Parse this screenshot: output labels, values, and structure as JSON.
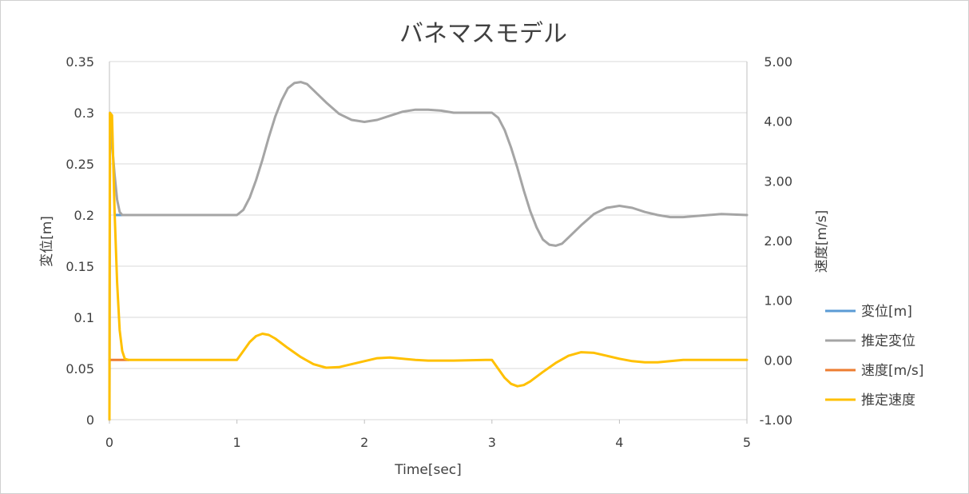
{
  "chart_data": {
    "type": "line",
    "title": "バネマスモデル",
    "xlabel": "Time[sec]",
    "ylabel": "変位[m]",
    "ylabel_right": "速度[m/s]",
    "xlim": [
      0,
      5
    ],
    "ylim": [
      0,
      0.35
    ],
    "ylim_right": [
      -1.0,
      5.0
    ],
    "x_ticks": [
      "0",
      "1",
      "2",
      "3",
      "4",
      "5"
    ],
    "y_ticks": [
      "0",
      "0.05",
      "0.1",
      "0.15",
      "0.2",
      "0.25",
      "0.3",
      "0.35"
    ],
    "y_ticks_right": [
      "-1.00",
      "0.00",
      "1.00",
      "2.00",
      "3.00",
      "4.00",
      "5.00"
    ],
    "grid": "horizontal",
    "legend_position": "right",
    "series": [
      {
        "name": "変位[m]",
        "axis": "left",
        "color": "#5b9bd5",
        "points": [
          [
            0.05,
            0.2
          ],
          [
            0.15,
            0.2
          ]
        ]
      },
      {
        "name": "推定変位",
        "axis": "left",
        "color": "#a5a5a5",
        "points": [
          [
            0.0,
            0.0
          ],
          [
            0.005,
            0.3
          ],
          [
            0.02,
            0.27
          ],
          [
            0.04,
            0.24
          ],
          [
            0.06,
            0.215
          ],
          [
            0.08,
            0.203
          ],
          [
            0.1,
            0.2
          ],
          [
            0.5,
            0.2
          ],
          [
            0.95,
            0.2
          ],
          [
            1.0,
            0.2
          ],
          [
            1.05,
            0.205
          ],
          [
            1.1,
            0.217
          ],
          [
            1.15,
            0.234
          ],
          [
            1.2,
            0.254
          ],
          [
            1.25,
            0.276
          ],
          [
            1.3,
            0.296
          ],
          [
            1.35,
            0.312
          ],
          [
            1.4,
            0.324
          ],
          [
            1.45,
            0.329
          ],
          [
            1.5,
            0.33
          ],
          [
            1.55,
            0.328
          ],
          [
            1.6,
            0.322
          ],
          [
            1.7,
            0.31
          ],
          [
            1.8,
            0.299
          ],
          [
            1.9,
            0.293
          ],
          [
            2.0,
            0.291
          ],
          [
            2.1,
            0.293
          ],
          [
            2.2,
            0.297
          ],
          [
            2.3,
            0.301
          ],
          [
            2.4,
            0.303
          ],
          [
            2.5,
            0.303
          ],
          [
            2.6,
            0.302
          ],
          [
            2.7,
            0.3
          ],
          [
            2.8,
            0.3
          ],
          [
            2.95,
            0.3
          ],
          [
            3.0,
            0.3
          ],
          [
            3.05,
            0.295
          ],
          [
            3.1,
            0.283
          ],
          [
            3.15,
            0.266
          ],
          [
            3.2,
            0.246
          ],
          [
            3.25,
            0.224
          ],
          [
            3.3,
            0.204
          ],
          [
            3.35,
            0.188
          ],
          [
            3.4,
            0.176
          ],
          [
            3.45,
            0.171
          ],
          [
            3.5,
            0.17
          ],
          [
            3.55,
            0.172
          ],
          [
            3.6,
            0.178
          ],
          [
            3.7,
            0.19
          ],
          [
            3.8,
            0.201
          ],
          [
            3.9,
            0.207
          ],
          [
            4.0,
            0.209
          ],
          [
            4.1,
            0.207
          ],
          [
            4.2,
            0.203
          ],
          [
            4.3,
            0.2
          ],
          [
            4.4,
            0.198
          ],
          [
            4.5,
            0.198
          ],
          [
            4.6,
            0.199
          ],
          [
            4.7,
            0.2
          ],
          [
            4.8,
            0.201
          ],
          [
            5.0,
            0.2
          ]
        ]
      },
      {
        "name": "速度[m/s]",
        "axis": "right",
        "color": "#ed7d31",
        "points": [
          [
            0.0,
            0.0
          ],
          [
            0.15,
            0.0
          ]
        ]
      },
      {
        "name": "推定速度",
        "axis": "right",
        "color": "#ffc000",
        "points": [
          [
            0.0,
            -1.0
          ],
          [
            0.002,
            2.0
          ],
          [
            0.004,
            4.14
          ],
          [
            0.02,
            4.1
          ],
          [
            0.04,
            2.5
          ],
          [
            0.06,
            1.3
          ],
          [
            0.08,
            0.5
          ],
          [
            0.1,
            0.15
          ],
          [
            0.12,
            0.02
          ],
          [
            0.15,
            0.0
          ],
          [
            0.5,
            0.0
          ],
          [
            0.95,
            0.0
          ],
          [
            1.0,
            0.0
          ],
          [
            1.05,
            0.15
          ],
          [
            1.1,
            0.3
          ],
          [
            1.15,
            0.4
          ],
          [
            1.2,
            0.44
          ],
          [
            1.25,
            0.42
          ],
          [
            1.3,
            0.36
          ],
          [
            1.4,
            0.2
          ],
          [
            1.5,
            0.05
          ],
          [
            1.6,
            -0.07
          ],
          [
            1.7,
            -0.13
          ],
          [
            1.8,
            -0.12
          ],
          [
            1.9,
            -0.07
          ],
          [
            2.0,
            -0.02
          ],
          [
            2.1,
            0.03
          ],
          [
            2.2,
            0.04
          ],
          [
            2.3,
            0.02
          ],
          [
            2.4,
            0.0
          ],
          [
            2.5,
            -0.01
          ],
          [
            2.7,
            -0.01
          ],
          [
            2.95,
            0.0
          ],
          [
            3.0,
            0.0
          ],
          [
            3.05,
            -0.15
          ],
          [
            3.1,
            -0.3
          ],
          [
            3.15,
            -0.4
          ],
          [
            3.2,
            -0.44
          ],
          [
            3.25,
            -0.42
          ],
          [
            3.3,
            -0.36
          ],
          [
            3.4,
            -0.2
          ],
          [
            3.5,
            -0.05
          ],
          [
            3.6,
            0.07
          ],
          [
            3.7,
            0.13
          ],
          [
            3.8,
            0.12
          ],
          [
            3.9,
            0.07
          ],
          [
            4.0,
            0.02
          ],
          [
            4.1,
            -0.02
          ],
          [
            4.2,
            -0.04
          ],
          [
            4.3,
            -0.04
          ],
          [
            4.4,
            -0.02
          ],
          [
            4.5,
            0.0
          ],
          [
            4.7,
            0.0
          ],
          [
            5.0,
            0.0
          ]
        ]
      }
    ]
  }
}
